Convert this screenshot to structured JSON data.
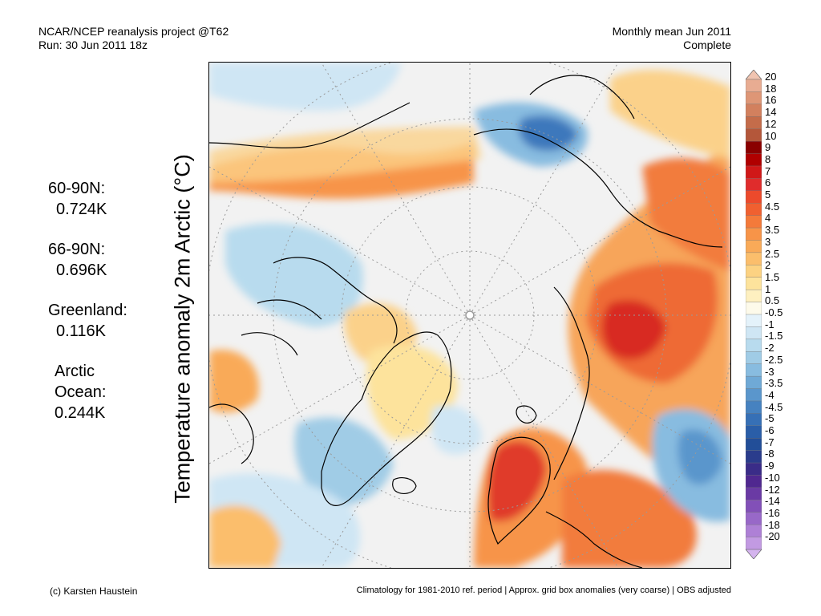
{
  "header": {
    "left_line1": "NCAR/NCEP reanalysis project @T62",
    "left_line2": "Run: 30 Jun 2011 18z",
    "right_line1": "Monthly mean Jun 2011",
    "right_line2": "Complete"
  },
  "vertical_title": "Temperature anomaly 2m Arctic (°C)",
  "stats": [
    {
      "label": "60-90N:",
      "value": "0.724K"
    },
    {
      "label": "66-90N:",
      "value": "0.696K"
    },
    {
      "label": "Greenland:",
      "value": "0.116K"
    },
    {
      "label_line1": "Arctic",
      "label_line2": "Ocean:",
      "value": "0.244K"
    }
  ],
  "colorbar": {
    "labels": [
      "20",
      "18",
      "16",
      "14",
      "12",
      "10",
      "9",
      "8",
      "7",
      "6",
      "5",
      "4.5",
      "4",
      "3.5",
      "3",
      "2.5",
      "2",
      "1.5",
      "1",
      "0.5",
      "-0.5",
      "-1",
      "-1.5",
      "-2",
      "-2.5",
      "-3",
      "-3.5",
      "-4",
      "-4.5",
      "-5",
      "-6",
      "-7",
      "-8",
      "-9",
      "-10",
      "-12",
      "-14",
      "-16",
      "-18",
      "-20"
    ],
    "colors": [
      "#f0c4b0",
      "#e8ac92",
      "#de9676",
      "#d2805e",
      "#c46c4a",
      "#b4573a",
      "#8a0000",
      "#b00000",
      "#d01818",
      "#e02c2c",
      "#ec4a2c",
      "#f06030",
      "#f47a3a",
      "#f79448",
      "#f9aa58",
      "#fbbe6c",
      "#fcd282",
      "#fde39c",
      "#fef0c0",
      "#fdfaea",
      "#e4f2fa",
      "#cfe6f4",
      "#b8dbee",
      "#a0cce6",
      "#88bce0",
      "#6fa9d6",
      "#5a96cc",
      "#4682c0",
      "#3670b6",
      "#2a5ea8",
      "#224e98",
      "#2a3c8c",
      "#3a2c88",
      "#502890",
      "#6a3aa4",
      "#8250b8",
      "#9868c8",
      "#ae80d6",
      "#c29ae2",
      "#d4b4ee"
    ]
  },
  "footer": {
    "left": "(c) Karsten Haustein",
    "right": "Climatology for 1981-2010 ref. period | Approx. grid box anomalies (very coarse) | OBS adjusted"
  },
  "map": {
    "pole_marker": "north-pole-marker",
    "features": [
      "warm-anomaly-siberia",
      "warm-anomaly-scandinavia",
      "warm-anomaly-canada-coast",
      "cool-anomaly-alaska",
      "cool-anomaly-canadian-archipelago",
      "cool-anomaly-north-atlantic",
      "cool-anomaly-western-russia",
      "cool-anomaly-greenland-sea"
    ]
  }
}
